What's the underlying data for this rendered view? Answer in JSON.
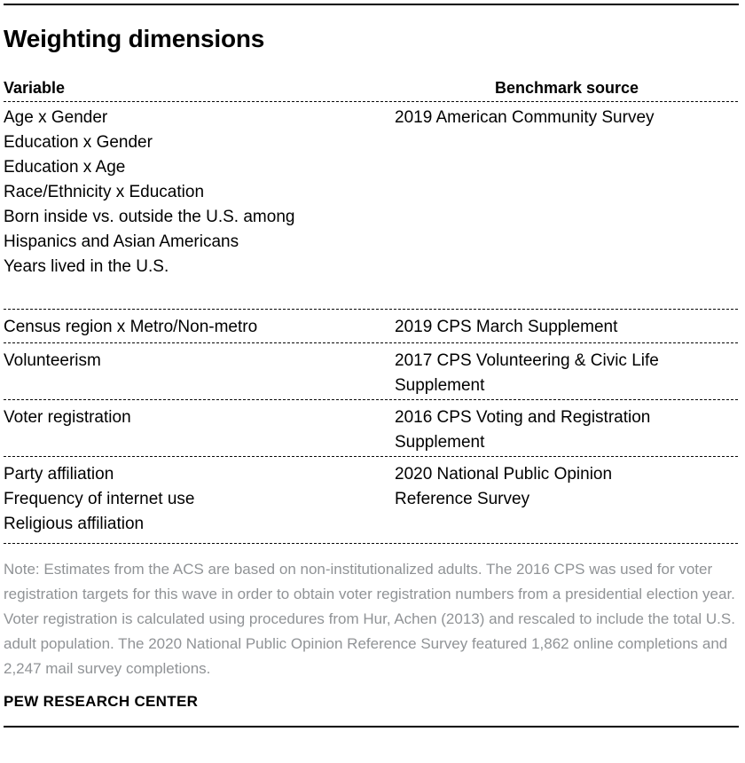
{
  "page": {
    "title": "Weighting dimensions",
    "note": "Note: Estimates from the ACS are based on non-institutionalized adults. The 2016 CPS was used for voter registration targets for this wave in order to obtain voter registration numbers from a presidential election year. Voter registration is calculated using procedures from Hur, Achen (2013) and rescaled to include the total U.S. adult population. The 2020 National Public Opinion Reference Survey featured 1,862 online completions and 2,247 mail survey completions.",
    "footer": "PEW RESEARCH CENTER"
  },
  "colors": {
    "text": "#000000",
    "note_gray": "#909396",
    "rule": "#000000"
  },
  "table": {
    "headers": {
      "variable": "Variable",
      "source": "Benchmark source"
    },
    "rows": [
      {
        "variables": [
          "Age x Gender",
          "Education x Gender",
          "Education x Age",
          "Race/Ethnicity x Education",
          "Born inside vs. outside the U.S. among\nHispanics and Asian Americans",
          "Years lived in the U.S."
        ],
        "source": "2019 American Community Survey"
      },
      {
        "variables": [
          "Census region x Metro/Non-metro"
        ],
        "source": "2019 CPS March Supplement"
      },
      {
        "variables": [
          "Volunteerism"
        ],
        "source": "2017 CPS Volunteering & Civic Life\nSupplement"
      },
      {
        "variables": [
          "Voter registration"
        ],
        "source": "2016 CPS Voting and Registration\nSupplement"
      },
      {
        "variables": [
          "Party affiliation",
          "Frequency of internet use",
          "Religious affiliation"
        ],
        "source": "2020 National Public Opinion\nReference Survey"
      }
    ]
  }
}
